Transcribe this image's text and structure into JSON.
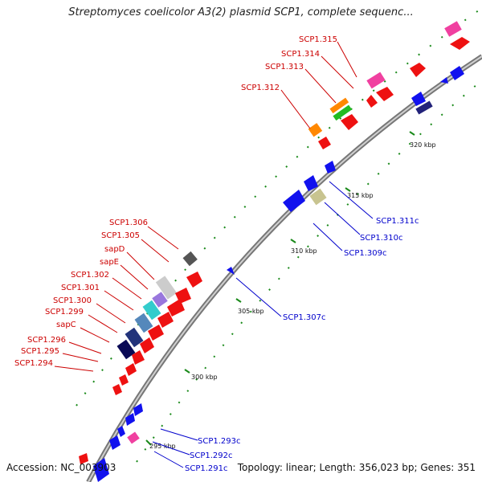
{
  "title": "Streptomyces coelicolor A3(2) plasmid SCP1, complete sequenc...",
  "footer": {
    "accession": "Accession: NC_003903",
    "summary": "Topology: linear; Length: 356,023 bp; Genes: 351"
  },
  "colors": {
    "forward_label": "#cc0000",
    "reverse_label": "#0000cc",
    "backbone": "#8a8a8a",
    "tick": "#1a8a1a"
  },
  "ticks": [
    {
      "label": "295 kbp"
    },
    {
      "label": "300 kbp"
    },
    {
      "label": "305 kbp"
    },
    {
      "label": "310 kbp"
    },
    {
      "label": "315 kbp"
    },
    {
      "label": "320 kbp"
    }
  ],
  "forward_labels": [
    {
      "text": "SCP1.315"
    },
    {
      "text": "SCP1.314"
    },
    {
      "text": "SCP1.313"
    },
    {
      "text": "SCP1.312"
    },
    {
      "text": "SCP1.306"
    },
    {
      "text": "SCP1.305"
    },
    {
      "text": "sapD"
    },
    {
      "text": "sapE"
    },
    {
      "text": "SCP1.302"
    },
    {
      "text": "SCP1.301"
    },
    {
      "text": "SCP1.300"
    },
    {
      "text": "SCP1.299"
    },
    {
      "text": "sapC"
    },
    {
      "text": "SCP1.296"
    },
    {
      "text": "SCP1.295"
    },
    {
      "text": "SCP1.294"
    }
  ],
  "reverse_labels": [
    {
      "text": "SCP1.311c"
    },
    {
      "text": "SCP1.310c"
    },
    {
      "text": "SCP1.309c"
    },
    {
      "text": "SCP1.307c"
    },
    {
      "text": "SCP1.293c"
    },
    {
      "text": "SCP1.292c"
    },
    {
      "text": "SCP1.291c"
    }
  ]
}
